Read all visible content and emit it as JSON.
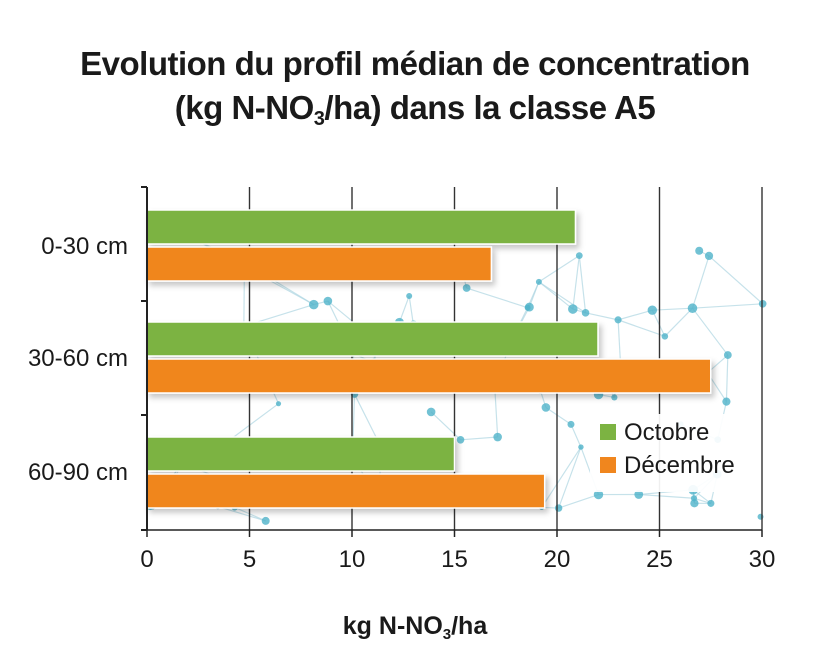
{
  "chart_data": {
    "type": "bar",
    "orientation": "horizontal",
    "title_line1": "Evolution du profil médian de concentration",
    "title_line2_pre": "(kg N-NO",
    "title_line2_sub": "3",
    "title_line2_post": "/ha) dans la classe A5",
    "xlabel_pre": "kg N-NO",
    "xlabel_sub": "3",
    "xlabel_post": "/ha",
    "categories": [
      "0-30 cm",
      "30-60 cm",
      "60-90 cm"
    ],
    "series": [
      {
        "name": "Octobre",
        "color": "#7cb342",
        "values": [
          20.9,
          22.0,
          15.0
        ]
      },
      {
        "name": "Décembre",
        "color": "#f0861e",
        "values": [
          16.8,
          27.5,
          19.4
        ]
      }
    ],
    "xlim": [
      0,
      30
    ],
    "xticks": [
      "0",
      "5",
      "10",
      "15",
      "20",
      "25",
      "30"
    ],
    "grid": true,
    "legend_position": "bottom-right"
  }
}
